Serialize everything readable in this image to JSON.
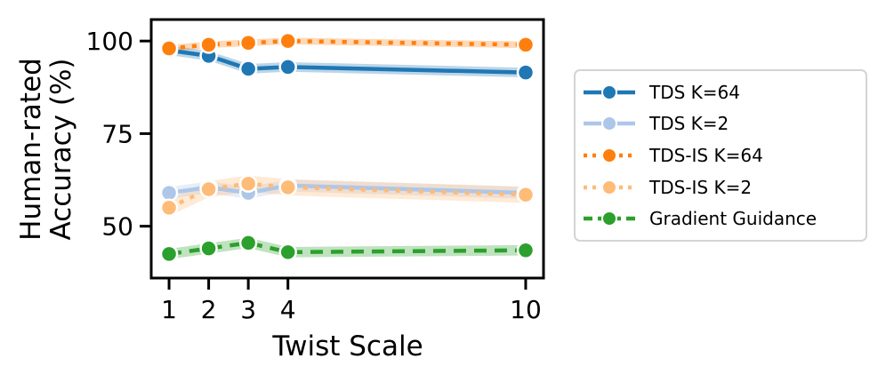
{
  "chart_data": {
    "type": "line",
    "title": "",
    "xlabel": "Twist Scale",
    "ylabel": "Human-rated Accuracy (%)",
    "ylabel_lines": [
      "Human-rated",
      "Accuracy (%)"
    ],
    "x": [
      1,
      2,
      3,
      4,
      10
    ],
    "xticks": [
      1,
      2,
      3,
      4,
      10
    ],
    "yticks": [
      50,
      75,
      100
    ],
    "xlim": [
      0.55,
      10.45
    ],
    "ylim": [
      36,
      105.8
    ],
    "grid": false,
    "legend_position": "right",
    "series": [
      {
        "name": "TDS K=64",
        "color": "#1f77b4",
        "style": "solid",
        "band": 1.3,
        "values": [
          97.5,
          96,
          92.5,
          93,
          91.5
        ]
      },
      {
        "name": "TDS K=2",
        "color": "#aec7e8",
        "style": "solid",
        "band": 1.6,
        "values": [
          59,
          60.5,
          59,
          61,
          59
        ]
      },
      {
        "name": "TDS-IS K=64",
        "color": "#ff7f0e",
        "style": "dotted",
        "band": 0.9,
        "values": [
          98,
          99,
          99.5,
          100,
          99
        ]
      },
      {
        "name": "TDS-IS K=2",
        "color": "#ffbb78",
        "style": "dotted",
        "band": 2.2,
        "values": [
          55,
          60,
          61.5,
          60.5,
          58.5
        ]
      },
      {
        "name": "Gradient Guidance",
        "color": "#2ca02c",
        "style": "dashed",
        "band": 1.4,
        "values": [
          42.5,
          44,
          45.5,
          43,
          43.5
        ]
      }
    ]
  },
  "legend": {
    "items": [
      "TDS K=64",
      "TDS K=2",
      "TDS-IS K=64",
      "TDS-IS K=2",
      "Gradient Guidance"
    ]
  }
}
